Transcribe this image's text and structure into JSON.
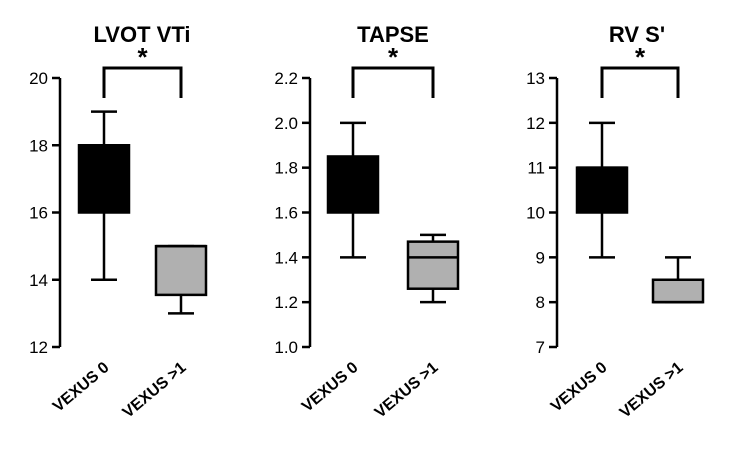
{
  "chart_data": [
    {
      "type": "box",
      "title": "LVOT VTi",
      "xlabel": "",
      "ylabel": "",
      "ylim": [
        12,
        20
      ],
      "yticks": [
        12,
        14,
        16,
        18,
        20
      ],
      "categories": [
        "VEXUS 0",
        "VEXUS >1"
      ],
      "boxes": [
        {
          "category": "VEXUS 0",
          "min": 14,
          "q1": 16,
          "median": 18,
          "q3": 18,
          "max": 19,
          "fill": "#000000"
        },
        {
          "category": "VEXUS >1",
          "min": 13,
          "q1": 13.55,
          "median": 15,
          "q3": 15,
          "max": 15,
          "fill": "#b0b0b0"
        }
      ],
      "significance": {
        "from": "VEXUS 0",
        "to": "VEXUS >1",
        "label": "*"
      }
    },
    {
      "type": "box",
      "title": "TAPSE",
      "xlabel": "",
      "ylabel": "",
      "ylim": [
        1.0,
        2.2
      ],
      "yticks": [
        "1.0",
        "1.2",
        "1.4",
        "1.6",
        "1.8",
        "2.0",
        "2.2"
      ],
      "categories": [
        "VEXUS 0",
        "VEXUS >1"
      ],
      "boxes": [
        {
          "category": "VEXUS 0",
          "min": 1.4,
          "q1": 1.6,
          "median": 1.8,
          "q3": 1.85,
          "max": 2.0,
          "fill": "#000000"
        },
        {
          "category": "VEXUS >1",
          "min": 1.2,
          "q1": 1.26,
          "median": 1.4,
          "q3": 1.47,
          "max": 1.5,
          "fill": "#b0b0b0"
        }
      ],
      "significance": {
        "from": "VEXUS 0",
        "to": "VEXUS >1",
        "label": "*"
      }
    },
    {
      "type": "box",
      "title": "RV S'",
      "xlabel": "",
      "ylabel": "",
      "ylim": [
        7,
        13
      ],
      "yticks": [
        7,
        8,
        9,
        10,
        11,
        12,
        13
      ],
      "categories": [
        "VEXUS 0",
        "VEXUS >1"
      ],
      "boxes": [
        {
          "category": "VEXUS 0",
          "min": 9,
          "q1": 10,
          "median": 11,
          "q3": 11,
          "max": 12,
          "fill": "#000000"
        },
        {
          "category": "VEXUS >1",
          "min": 8,
          "q1": 8,
          "median": 8,
          "q3": 8.5,
          "max": 9,
          "fill": "#b0b0b0"
        }
      ],
      "significance": {
        "from": "VEXUS 0",
        "to": "VEXUS >1",
        "label": "*"
      }
    }
  ]
}
